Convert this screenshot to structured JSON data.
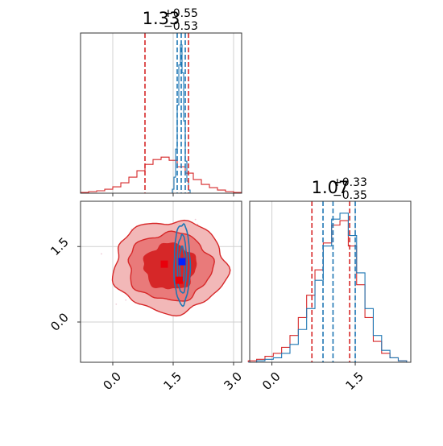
{
  "chart_data": [
    {
      "type": "histogram",
      "panel": "top-left marginal",
      "title_value": "1.33",
      "title_plus": "+0.55",
      "title_minus": "−0.53",
      "xlim": [
        -0.8,
        3.2
      ],
      "grid": true,
      "xticks": [
        0.0,
        1.5,
        3.0
      ],
      "series": [
        {
          "color": "#d62728",
          "x": [
            -0.7,
            -0.5,
            -0.3,
            -0.1,
            0.1,
            0.3,
            0.5,
            0.7,
            0.9,
            1.1,
            1.3,
            1.5,
            1.7,
            1.9,
            2.1,
            2.3,
            2.5,
            2.7,
            2.9,
            3.1
          ],
          "values": [
            0.01,
            0.02,
            0.03,
            0.05,
            0.08,
            0.13,
            0.2,
            0.28,
            0.36,
            0.42,
            0.45,
            0.41,
            0.33,
            0.25,
            0.17,
            0.11,
            0.07,
            0.04,
            0.02,
            0.01
          ],
          "lines": [
            0.8,
            1.88
          ]
        },
        {
          "color": "#1f77b4",
          "x": [
            1.5,
            1.54,
            1.58,
            1.62,
            1.66,
            1.7,
            1.74,
            1.78,
            1.82,
            1.86,
            1.9
          ],
          "values": [
            0.05,
            0.2,
            0.55,
            1.1,
            1.6,
            1.85,
            1.5,
            0.9,
            0.4,
            0.15,
            0.04
          ],
          "lines": [
            1.6,
            1.7,
            1.8
          ]
        }
      ]
    },
    {
      "type": "contour",
      "panel": "bottom-left joint",
      "xlim": [
        -0.8,
        3.2
      ],
      "ylim": [
        -0.8,
        2.4
      ],
      "xticks": [
        "0.0",
        "1.5",
        "3.0"
      ],
      "yticks": [
        "0.0",
        "1.5"
      ],
      "grid": true,
      "series": [
        {
          "color": "#d62728",
          "fill_levels": [
            "#f2b8b8",
            "#e97a7a",
            "#d62728"
          ],
          "center": [
            1.3,
            1.1
          ],
          "markers": [
            [
              1.28,
              1.15
            ],
            [
              1.65,
              0.83
            ]
          ]
        },
        {
          "color": "#1f77b4",
          "center": [
            1.72,
            1.15
          ],
          "markers": [
            [
              1.72,
              1.2
            ]
          ]
        }
      ]
    },
    {
      "type": "histogram",
      "panel": "bottom-right marginal",
      "title_value": "1.07",
      "title_plus": "+0.33",
      "title_minus": "−0.35",
      "xlim": [
        -0.4,
        2.5
      ],
      "grid": true,
      "xticks": [
        "0.0",
        "1.5"
      ],
      "series": [
        {
          "color": "#d62728",
          "x": [
            -0.35,
            -0.2,
            -0.05,
            0.1,
            0.25,
            0.4,
            0.55,
            0.7,
            0.85,
            1.0,
            1.15,
            1.3,
            1.45,
            1.6,
            1.75,
            1.9,
            2.05,
            2.2,
            2.35
          ],
          "values": [
            0.01,
            0.02,
            0.04,
            0.06,
            0.1,
            0.18,
            0.3,
            0.45,
            0.62,
            0.8,
            0.92,
            0.95,
            0.78,
            0.52,
            0.3,
            0.14,
            0.06,
            0.03,
            0.01
          ],
          "lines": [
            0.72,
            1.4
          ]
        },
        {
          "color": "#1f77b4",
          "x": [
            -0.35,
            -0.2,
            -0.05,
            0.1,
            0.25,
            0.4,
            0.55,
            0.7,
            0.85,
            1.0,
            1.15,
            1.3,
            1.45,
            1.6,
            1.75,
            1.9,
            2.05,
            2.2,
            2.35
          ],
          "values": [
            0.0,
            0.01,
            0.02,
            0.03,
            0.06,
            0.12,
            0.22,
            0.36,
            0.55,
            0.78,
            0.96,
            1.0,
            0.85,
            0.6,
            0.36,
            0.18,
            0.08,
            0.03,
            0.01
          ],
          "lines": [
            0.92,
            1.1,
            1.5
          ]
        }
      ]
    }
  ]
}
